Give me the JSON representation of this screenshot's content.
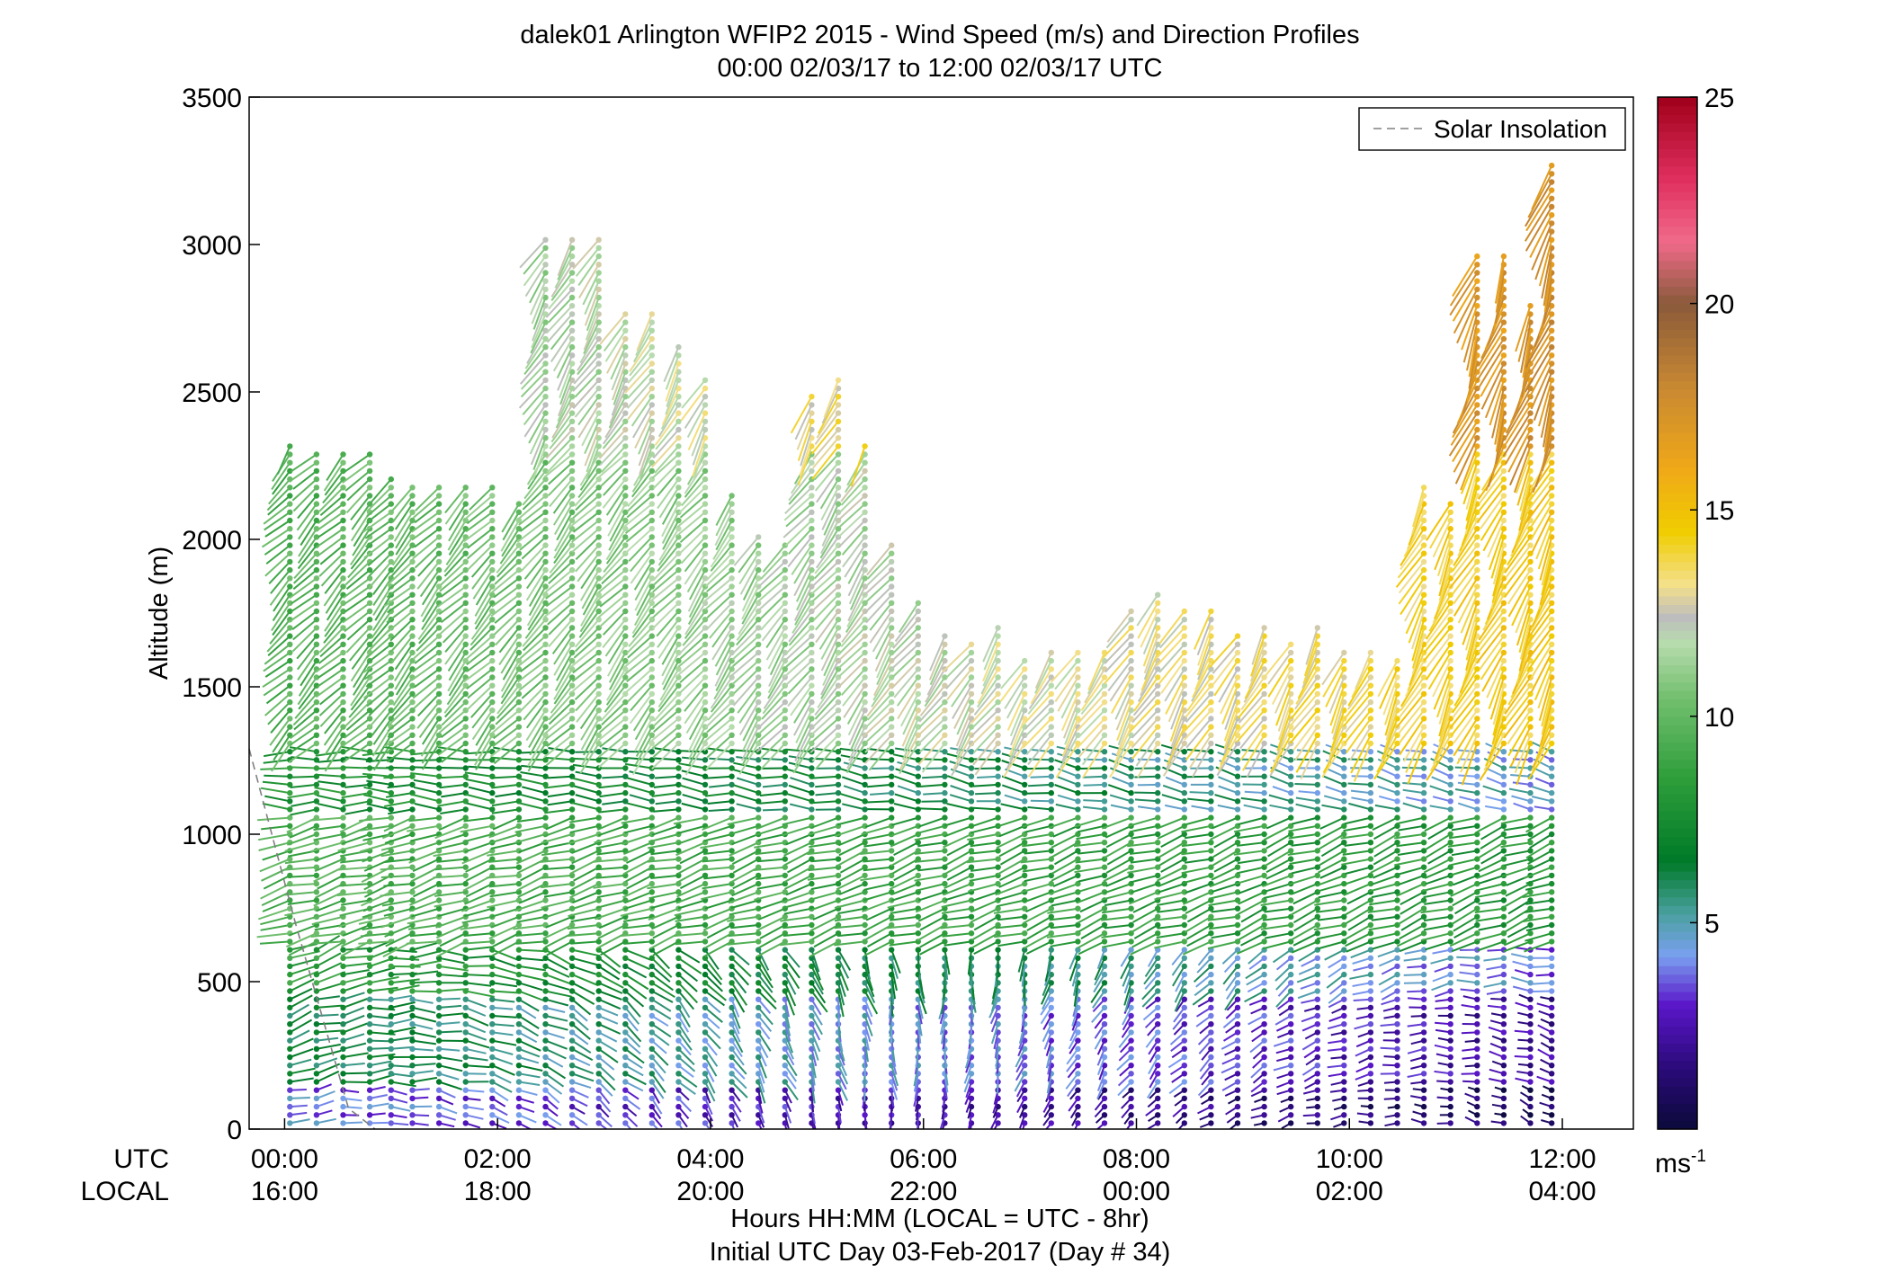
{
  "chart_data": {
    "type": "wind-barb-profile",
    "title": "dalek01 Arlington WFIP2 2015 - Wind Speed (m/s) and Direction Profiles",
    "subtitle": "00:00 02/03/17 to 12:00 02/03/17  UTC",
    "ylabel": "Altitude (m)",
    "ylim": [
      0,
      3500
    ],
    "yticks": [
      "0",
      "500",
      "1000",
      "1500",
      "2000",
      "2500",
      "3000",
      "3500"
    ],
    "xlim_hours_utc": [
      -0.333,
      12.667
    ],
    "row_labels": {
      "utc": "UTC",
      "local": "LOCAL"
    },
    "xticks_utc": [
      "00:00",
      "02:00",
      "04:00",
      "06:00",
      "08:00",
      "10:00",
      "12:00"
    ],
    "xticks_local": [
      "16:00",
      "18:00",
      "20:00",
      "22:00",
      "00:00",
      "02:00",
      "04:00"
    ],
    "xlabel": "Hours HH:MM  (LOCAL = UTC - 8hr)",
    "footer": "Initial UTC Day 03-Feb-2017 (Day # 34)",
    "legend": {
      "label": "Solar Insolation",
      "style": "dashed",
      "color": "#808080",
      "placement": "top-right"
    },
    "colorbar": {
      "range": [
        0,
        25
      ],
      "ticks": [
        "5",
        "10",
        "15",
        "20",
        "25"
      ],
      "unit_base": "ms",
      "unit_exp": "-1",
      "stops": [
        {
          "v": 0,
          "c": "#0a0a3a"
        },
        {
          "v": 1.5,
          "c": "#2b0a7a"
        },
        {
          "v": 3,
          "c": "#5a16c8"
        },
        {
          "v": 4.2,
          "c": "#7aa0f0"
        },
        {
          "v": 5.2,
          "c": "#4aa0a0"
        },
        {
          "v": 6.5,
          "c": "#007a28"
        },
        {
          "v": 8.5,
          "c": "#2e9e3a"
        },
        {
          "v": 10.5,
          "c": "#74c070"
        },
        {
          "v": 11.8,
          "c": "#b8dcae"
        },
        {
          "v": 12.4,
          "c": "#bdbdbd"
        },
        {
          "v": 13.2,
          "c": "#f4e08a"
        },
        {
          "v": 14.5,
          "c": "#f0cc00"
        },
        {
          "v": 16,
          "c": "#f0a818"
        },
        {
          "v": 18,
          "c": "#c88832"
        },
        {
          "v": 20,
          "c": "#8a5a3a"
        },
        {
          "v": 21.5,
          "c": "#f06a8a"
        },
        {
          "v": 23,
          "c": "#e03060"
        },
        {
          "v": 25,
          "c": "#a0001a"
        }
      ]
    },
    "solar_insolation_line": [
      [
        -0.333,
        1290
      ],
      [
        0.1,
        700
      ],
      [
        0.6,
        70
      ],
      [
        0.85,
        0
      ]
    ],
    "profile_top_m": [
      [
        0.05,
        2320
      ],
      [
        0.3,
        2310
      ],
      [
        0.55,
        2290
      ],
      [
        0.8,
        2300
      ],
      [
        1.0,
        2230
      ],
      [
        1.2,
        2200
      ],
      [
        1.45,
        2180
      ],
      [
        1.7,
        2180
      ],
      [
        1.95,
        2180
      ],
      [
        2.2,
        2140
      ],
      [
        2.45,
        3040
      ],
      [
        2.7,
        3040
      ],
      [
        2.95,
        3040
      ],
      [
        3.2,
        2780
      ],
      [
        3.45,
        2780
      ],
      [
        3.7,
        2660
      ],
      [
        3.95,
        2560
      ],
      [
        4.2,
        2160
      ],
      [
        4.45,
        2020
      ],
      [
        4.7,
        1980
      ],
      [
        4.95,
        2500
      ],
      [
        5.2,
        2540
      ],
      [
        5.45,
        2340
      ],
      [
        5.7,
        2000
      ],
      [
        5.95,
        1800
      ],
      [
        6.2,
        1680
      ],
      [
        6.45,
        1660
      ],
      [
        6.7,
        1700
      ],
      [
        6.95,
        1600
      ],
      [
        7.2,
        1630
      ],
      [
        7.45,
        1630
      ],
      [
        7.7,
        1630
      ],
      [
        7.95,
        1760
      ],
      [
        8.2,
        1820
      ],
      [
        8.45,
        1760
      ],
      [
        8.7,
        1770
      ],
      [
        8.95,
        1680
      ],
      [
        9.2,
        1700
      ],
      [
        9.45,
        1650
      ],
      [
        9.7,
        1700
      ],
      [
        9.95,
        1620
      ],
      [
        10.2,
        1620
      ],
      [
        10.45,
        1600
      ],
      [
        10.7,
        2180
      ],
      [
        10.95,
        2120
      ],
      [
        11.2,
        2960
      ],
      [
        11.45,
        2960
      ],
      [
        11.7,
        2800
      ],
      [
        11.9,
        3270
      ]
    ],
    "wind_bands": [
      {
        "bottom": 0,
        "top": 150,
        "early": 4.0,
        "late": 0.8,
        "dir_early": 75,
        "dir_late": 300
      },
      {
        "bottom": 150,
        "top": 450,
        "early": 6.5,
        "late": 2.0,
        "dir_early": 70,
        "dir_late": 290
      },
      {
        "bottom": 450,
        "top": 620,
        "early": 8.5,
        "late": 3.8,
        "dir_early": 65,
        "dir_late": 280
      },
      {
        "bottom": 620,
        "top": 1080,
        "early": 9.5,
        "late": 8.0,
        "dir_early": 255,
        "dir_late": 250
      },
      {
        "bottom": 1080,
        "top": 1300,
        "early": 8.0,
        "late": 4.5,
        "dir_early": 270,
        "dir_late": 285
      },
      {
        "bottom": 1300,
        "top": 2300,
        "early": 9.5,
        "late": 14.5,
        "dir_early": 225,
        "dir_late": 205
      },
      {
        "bottom": 2300,
        "top": 3300,
        "early": 10.0,
        "late": 17.5,
        "dir_early": 215,
        "dir_late": 200
      }
    ]
  }
}
